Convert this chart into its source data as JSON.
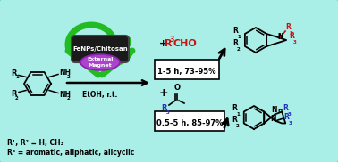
{
  "bg_color": "#aaeee8",
  "border_color": "#55cccc",
  "green": "#22bb22",
  "dark_green": "#118811",
  "pill_bg": "#1a1a1a",
  "pill_border": "#444444",
  "purple": "#aa44cc",
  "purple_border": "#8822aa",
  "red": "#cc1111",
  "blue": "#2233bb",
  "black": "#000000",
  "white": "#ffffff",
  "box_bg": "#ffffff",
  "catalyst_text": "FeNPs/Chitosan",
  "magnet_line1": "External",
  "magnet_line2": "Magnet",
  "solvent": "EtOH, r.t.",
  "cond1": "1-5 h, 73-95%",
  "cond2": "0.5-5 h, 85-97%",
  "label1": "R¹, R² = H, CH₃",
  "label2": "R³ = aromatic, aliphatic, alicyclic"
}
